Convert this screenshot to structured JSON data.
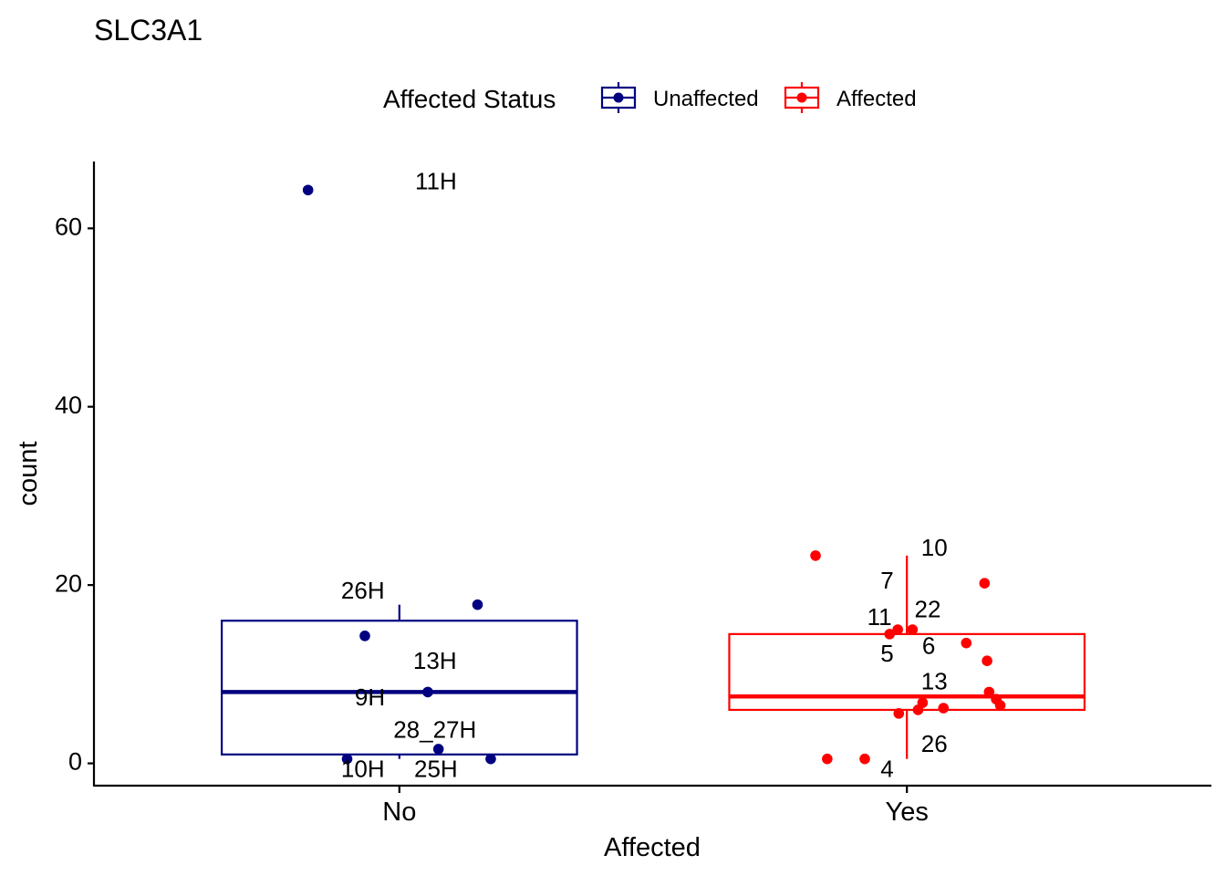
{
  "chart_data": {
    "type": "box",
    "title": "SLC3A1",
    "xlabel": "Affected",
    "ylabel": "count",
    "categories": [
      "No",
      "Yes"
    ],
    "ylim": [
      -2.5,
      67.5
    ],
    "yticks": [
      0,
      20,
      40,
      60
    ],
    "legend": {
      "title": "Affected Status",
      "position": "top",
      "entries": [
        {
          "label": "Unaffected",
          "color": "#000080"
        },
        {
          "label": "Affected",
          "color": "#ff0000"
        }
      ]
    },
    "boxes": [
      {
        "category": "No",
        "group": "Unaffected",
        "color": "#000080",
        "whisker_low": 0.5,
        "q1": 1.0,
        "median": 8.0,
        "q3": 16.0,
        "whisker_high": 17.8
      },
      {
        "category": "Yes",
        "group": "Affected",
        "color": "#ff0000",
        "whisker_low": 0.5,
        "q1": 6.0,
        "median": 7.5,
        "q3": 14.5,
        "whisker_high": 23.3
      }
    ],
    "points": [
      {
        "category": "No",
        "group": "Unaffected",
        "jitter": -0.18,
        "y": 64.3
      },
      {
        "category": "No",
        "group": "Unaffected",
        "jitter": 0.154,
        "y": 17.8
      },
      {
        "category": "No",
        "group": "Unaffected",
        "jitter": -0.068,
        "y": 14.3
      },
      {
        "category": "No",
        "group": "Unaffected",
        "jitter": 0.056,
        "y": 8.0
      },
      {
        "category": "No",
        "group": "Unaffected",
        "jitter": 0.077,
        "y": 1.6
      },
      {
        "category": "No",
        "group": "Unaffected",
        "jitter": -0.103,
        "y": 0.5
      },
      {
        "category": "No",
        "group": "Unaffected",
        "jitter": 0.18,
        "y": 0.5
      },
      {
        "category": "Yes",
        "group": "Affected",
        "jitter": -0.18,
        "y": 23.3
      },
      {
        "category": "Yes",
        "group": "Affected",
        "jitter": 0.153,
        "y": 20.2
      },
      {
        "category": "Yes",
        "group": "Affected",
        "jitter": -0.018,
        "y": 15.0
      },
      {
        "category": "Yes",
        "group": "Affected",
        "jitter": 0.011,
        "y": 15.0
      },
      {
        "category": "Yes",
        "group": "Affected",
        "jitter": -0.034,
        "y": 14.5
      },
      {
        "category": "Yes",
        "group": "Affected",
        "jitter": 0.117,
        "y": 13.5
      },
      {
        "category": "Yes",
        "group": "Affected",
        "jitter": 0.158,
        "y": 11.5
      },
      {
        "category": "Yes",
        "group": "Affected",
        "jitter": 0.162,
        "y": 8.0
      },
      {
        "category": "Yes",
        "group": "Affected",
        "jitter": 0.176,
        "y": 7.2
      },
      {
        "category": "Yes",
        "group": "Affected",
        "jitter": 0.184,
        "y": 6.5
      },
      {
        "category": "Yes",
        "group": "Affected",
        "jitter": 0.031,
        "y": 6.8
      },
      {
        "category": "Yes",
        "group": "Affected",
        "jitter": 0.072,
        "y": 6.2
      },
      {
        "category": "Yes",
        "group": "Affected",
        "jitter": 0.022,
        "y": 6.0
      },
      {
        "category": "Yes",
        "group": "Affected",
        "jitter": -0.016,
        "y": 5.6
      },
      {
        "category": "Yes",
        "group": "Affected",
        "jitter": -0.157,
        "y": 0.5
      },
      {
        "category": "Yes",
        "group": "Affected",
        "jitter": -0.083,
        "y": 0.5
      }
    ],
    "labels": [
      {
        "category": "No",
        "text": "11H",
        "offset": 0.072,
        "y": 65.1
      },
      {
        "category": "No",
        "text": "26H",
        "offset": -0.072,
        "y": 19.2
      },
      {
        "category": "No",
        "text": "13H",
        "offset": 0.07,
        "y": 11.3
      },
      {
        "category": "No",
        "text": "9H",
        "offset": -0.058,
        "y": 7.2
      },
      {
        "category": "No",
        "text": "28_27H",
        "offset": 0.07,
        "y": 3.6
      },
      {
        "category": "No",
        "text": "10H",
        "offset": -0.072,
        "y": -0.8
      },
      {
        "category": "No",
        "text": "25H",
        "offset": 0.072,
        "y": -0.8
      },
      {
        "category": "Yes",
        "text": "10",
        "offset": 0.054,
        "y": 24.0
      },
      {
        "category": "Yes",
        "text": "7",
        "offset": -0.039,
        "y": 20.3
      },
      {
        "category": "Yes",
        "text": "22",
        "offset": 0.041,
        "y": 17.1
      },
      {
        "category": "Yes",
        "text": "11",
        "offset": -0.054,
        "y": 16.2
      },
      {
        "category": "Yes",
        "text": "6",
        "offset": 0.043,
        "y": 13.0
      },
      {
        "category": "Yes",
        "text": "5",
        "offset": -0.039,
        "y": 12.1
      },
      {
        "category": "Yes",
        "text": "13",
        "offset": 0.054,
        "y": 9.0
      },
      {
        "category": "Yes",
        "text": "26",
        "offset": 0.054,
        "y": 2.0
      },
      {
        "category": "Yes",
        "text": "4",
        "offset": -0.039,
        "y": -0.8
      }
    ]
  }
}
